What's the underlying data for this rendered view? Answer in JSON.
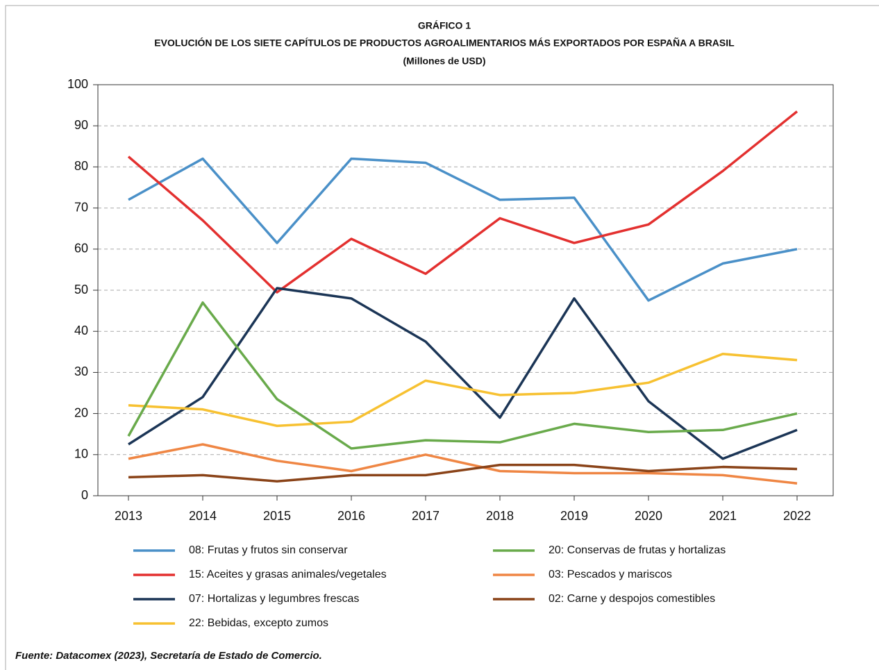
{
  "chart_data": {
    "type": "line",
    "title": "GRÁFICO 1",
    "subtitle": "EVOLUCIÓN DE LOS SIETE CAPÍTULOS DE PRODUCTOS AGROALIMENTARIOS MÁS EXPORTADOS POR ESPAÑA A BRASIL",
    "units": "(Millones de USD)",
    "source": "Fuente: Datacomex (2023), Secretaría de Estado de Comercio.",
    "categories": [
      "2013",
      "2014",
      "2015",
      "2016",
      "2017",
      "2018",
      "2019",
      "2020",
      "2021",
      "2022"
    ],
    "series": [
      {
        "name": "08: Frutas y frutos sin conservar",
        "color": "#4a90c8",
        "values": [
          72,
          82,
          61.5,
          82,
          81,
          72,
          72.5,
          47.5,
          56.5,
          60
        ]
      },
      {
        "name": "15: Aceites y grasas animales/vegetales",
        "color": "#e3302f",
        "values": [
          82.5,
          67,
          49.5,
          62.5,
          54,
          67.5,
          61.5,
          66,
          79,
          93.5
        ]
      },
      {
        "name": "07: Hortalizas y legumbres frescas",
        "color": "#1b3556",
        "values": [
          12.5,
          24,
          50.5,
          48,
          37.5,
          19,
          48,
          23,
          9,
          16
        ]
      },
      {
        "name": "22: Bebidas, excepto zumos",
        "color": "#f7c131",
        "values": [
          22,
          21,
          17,
          18,
          28,
          24.5,
          25,
          27.5,
          34.5,
          33
        ]
      },
      {
        "name": "20: Conservas de frutas y hortalizas",
        "color": "#69aa4b",
        "values": [
          14.5,
          47,
          23.5,
          11.5,
          13.5,
          13,
          17.5,
          15.5,
          16,
          20
        ]
      },
      {
        "name": "03: Pescados y mariscos",
        "color": "#ef8644",
        "values": [
          9,
          12.5,
          8.5,
          6,
          10,
          6,
          5.5,
          5.5,
          5,
          3
        ]
      },
      {
        "name": "02: Carne y despojos comestibles",
        "color": "#8a4318",
        "values": [
          4.5,
          5,
          3.5,
          5,
          5,
          7.5,
          7.5,
          6,
          7,
          6.5
        ]
      }
    ],
    "ylim": [
      0,
      100
    ],
    "yticks": [
      0,
      10,
      20,
      30,
      40,
      50,
      60,
      70,
      80,
      90,
      100
    ],
    "grid": true
  }
}
